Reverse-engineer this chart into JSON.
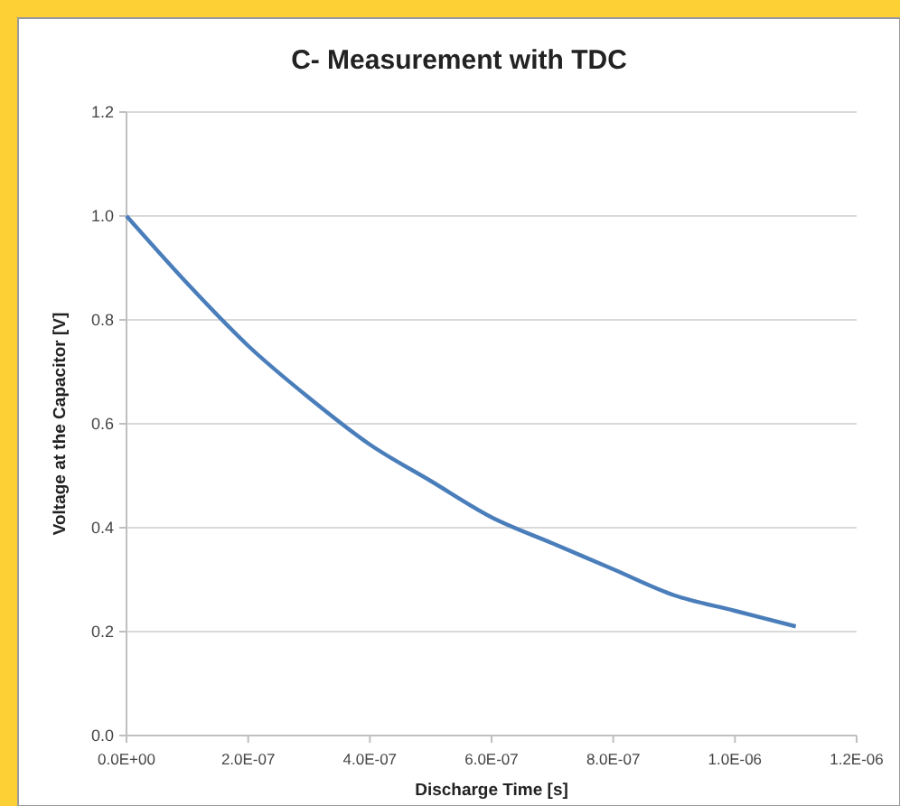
{
  "chart_data": {
    "type": "line",
    "title": "C- Measurement with TDC",
    "xlabel": "Discharge Time [s]",
    "ylabel": "Voltage at the Capacitor [V]",
    "x": [
      0,
      1e-07,
      2e-07,
      3e-07,
      4e-07,
      5e-07,
      6e-07,
      7e-07,
      8e-07,
      9e-07,
      1e-06,
      1.1e-06
    ],
    "series": [
      {
        "color": "#4a7ebb",
        "values": [
          1.0,
          0.87,
          0.75,
          0.65,
          0.56,
          0.49,
          0.42,
          0.37,
          0.32,
          0.27,
          0.24,
          0.21
        ]
      }
    ],
    "xlim": [
      0,
      1.2e-06
    ],
    "ylim": [
      0,
      1.2
    ],
    "xticks": [
      {
        "value": 0,
        "label": "0.0E+00"
      },
      {
        "value": 2e-07,
        "label": "2.0E-07"
      },
      {
        "value": 4e-07,
        "label": "4.0E-07"
      },
      {
        "value": 6e-07,
        "label": "6.0E-07"
      },
      {
        "value": 8e-07,
        "label": "8.0E-07"
      },
      {
        "value": 1e-06,
        "label": "1.0E-06"
      },
      {
        "value": 1.2e-06,
        "label": "1.2E-06"
      }
    ],
    "yticks": [
      {
        "value": 0,
        "label": "0.0"
      },
      {
        "value": 0.2,
        "label": "0.2"
      },
      {
        "value": 0.4,
        "label": "0.4"
      },
      {
        "value": 0.6,
        "label": "0.6"
      },
      {
        "value": 0.8,
        "label": "0.8"
      },
      {
        "value": 1,
        "label": "1.0"
      },
      {
        "value": 1.2,
        "label": "1.2"
      }
    ],
    "grid": "y",
    "marker": "none",
    "line_style": "solid"
  }
}
